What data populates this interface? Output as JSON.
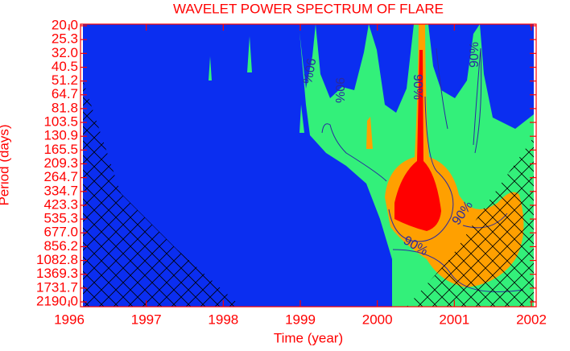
{
  "chart_data": {
    "type": "contour",
    "title": "WAVELET POWER SPECTRUM OF FLARE",
    "x_label": "Time (year)",
    "y_label": "Period (days)",
    "xlim": [
      1996,
      2002
    ],
    "xticks": [
      1996,
      1997,
      1998,
      1999,
      2000,
      2001,
      2002
    ],
    "ylim": [
      20,
      2190
    ],
    "ylog": true,
    "yreversed": true,
    "yticks": [
      {
        "value": 20,
        "label": "20.0"
      },
      25.3,
      {
        "value": 32,
        "label": "32.0"
      },
      40.5,
      51.2,
      64.7,
      81.8,
      103.5,
      130.9,
      165.5,
      209.3,
      264.7,
      334.7,
      423.3,
      535.3,
      {
        "value": 677,
        "label": "677.0"
      },
      856.2,
      1082.8,
      1369.3,
      1731.7,
      {
        "value": 2190,
        "label": "2190.0"
      }
    ],
    "axis_color": "#ff0000",
    "annotations": [
      "90%",
      "90%",
      "90%",
      "90%",
      "90%",
      "90%"
    ]
  }
}
